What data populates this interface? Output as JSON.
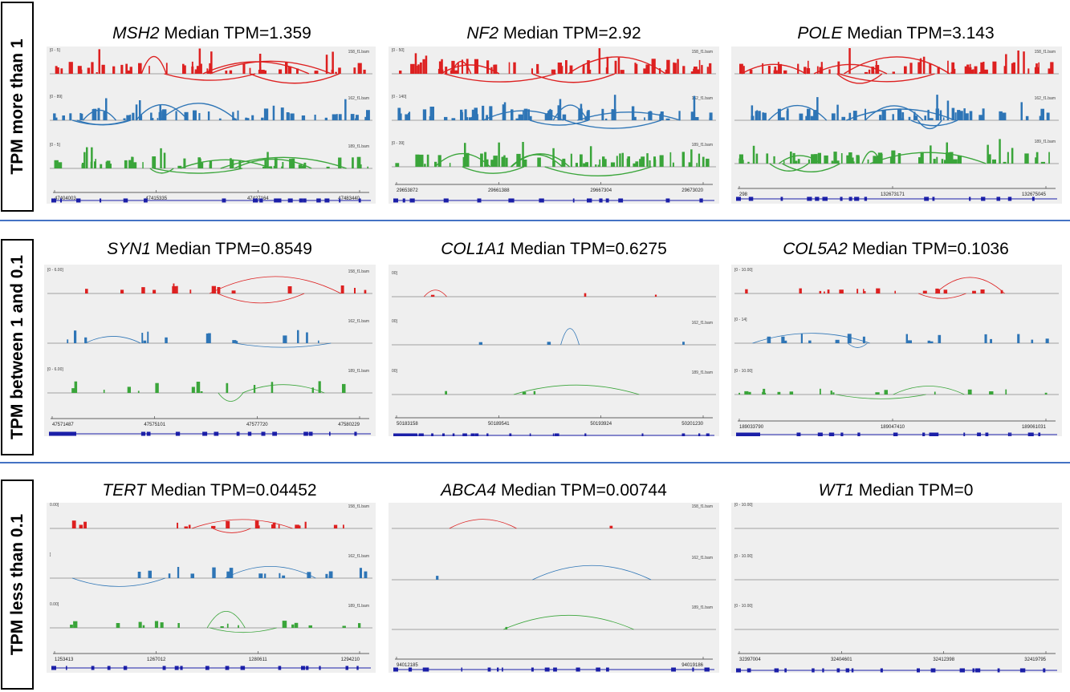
{
  "row_labels": [
    "TPM more than 1",
    "TPM between 1 and 0.1",
    "TPM less than 0.1"
  ],
  "colors": {
    "red": "#dd2020",
    "blue": "#2e75b6",
    "green": "#3aa53a",
    "gene_track": "#1b1fa8",
    "separator": "#4472c4"
  },
  "panels": [
    {
      "gene": "MSH2",
      "label": "Median TPM=1.359",
      "tracks": [
        {
          "name": "158_f1.bam",
          "range": "[0 - 5]"
        },
        {
          "name": "162_f1.bam",
          "range": "[0 - 89]"
        },
        {
          "name": "189_f1.bam",
          "range": "[0 - 5]"
        }
      ],
      "coords": [
        "47404003",
        "47415335",
        "47427164",
        "47483440"
      ]
    },
    {
      "gene": "NF2",
      "label": "Median TPM=2.92",
      "tracks": [
        {
          "name": "158_f1.bam",
          "range": "[0 - 50]"
        },
        {
          "name": "162_f1.bam",
          "range": "[0 - 140]"
        },
        {
          "name": "189_f1.bam",
          "range": "[0 - 39]"
        }
      ],
      "coords": [
        "29653872",
        "29661388",
        "29667304",
        "29673020"
      ]
    },
    {
      "gene": "POLE",
      "label": "Median TPM=3.143",
      "tracks": [
        {
          "name": "158_f1.bam",
          "range": ""
        },
        {
          "name": "162_f1.bam",
          "range": ""
        },
        {
          "name": "189_f1.bam",
          "range": ""
        }
      ],
      "coords": [
        "298",
        "132673171",
        "132675045"
      ]
    },
    {
      "gene": "SYN1",
      "label": "Median TPM=0.8549",
      "tracks": [
        {
          "name": "158_f1.bam",
          "range": "[0 - 6.00]"
        },
        {
          "name": "162_f1.bam",
          "range": ""
        },
        {
          "name": "189_f1.bam",
          "range": "[0 - 6.00]"
        }
      ],
      "coords": [
        "47571487",
        "47575101",
        "47577720",
        "47580229"
      ]
    },
    {
      "gene": "COL1A1",
      "label": "Median TPM=0.6275",
      "tracks": [
        {
          "name": "",
          "range": "00]"
        },
        {
          "name": "162_f1.bam",
          "range": "00]"
        },
        {
          "name": "189_f1.bam",
          "range": "00]"
        }
      ],
      "coords": [
        "50183158",
        "50189541",
        "50193924",
        "50201230"
      ]
    },
    {
      "gene": "COL5A2",
      "label": "Median TPM=0.1036",
      "tracks": [
        {
          "name": "",
          "range": "[0 - 10.00]"
        },
        {
          "name": "",
          "range": "[0 - 14]"
        },
        {
          "name": "",
          "range": "[0 - 10.00]"
        }
      ],
      "coords": [
        "189033790",
        "189047410",
        "189061031"
      ]
    },
    {
      "gene": "TERT",
      "label": "Median TPM=0.04452",
      "tracks": [
        {
          "name": "158_f1.bam",
          "range": "0.00]"
        },
        {
          "name": "162_f1.bam",
          "range": "]"
        },
        {
          "name": "189_f1.bam",
          "range": "0.00]"
        }
      ],
      "coords": [
        "1253413",
        "1267012",
        "1280611",
        "1294210"
      ]
    },
    {
      "gene": "ABCA4",
      "label": "Median TPM=0.00744",
      "tracks": [
        {
          "name": "158_f1.bam",
          "range": ""
        },
        {
          "name": "162_f1.bam",
          "range": ""
        },
        {
          "name": "189_f1.bam",
          "range": ""
        }
      ],
      "coords": [
        "94012185",
        "94019186"
      ]
    },
    {
      "gene": "WT1",
      "label": "Median TPM=0",
      "tracks": [
        {
          "name": "",
          "range": "[0 - 10.00]"
        },
        {
          "name": "",
          "range": "[0 - 10.00]"
        },
        {
          "name": "",
          "range": "[0 - 10.00]"
        }
      ],
      "coords": [
        "32397004",
        "32404601",
        "32412398",
        "32419795"
      ]
    }
  ]
}
